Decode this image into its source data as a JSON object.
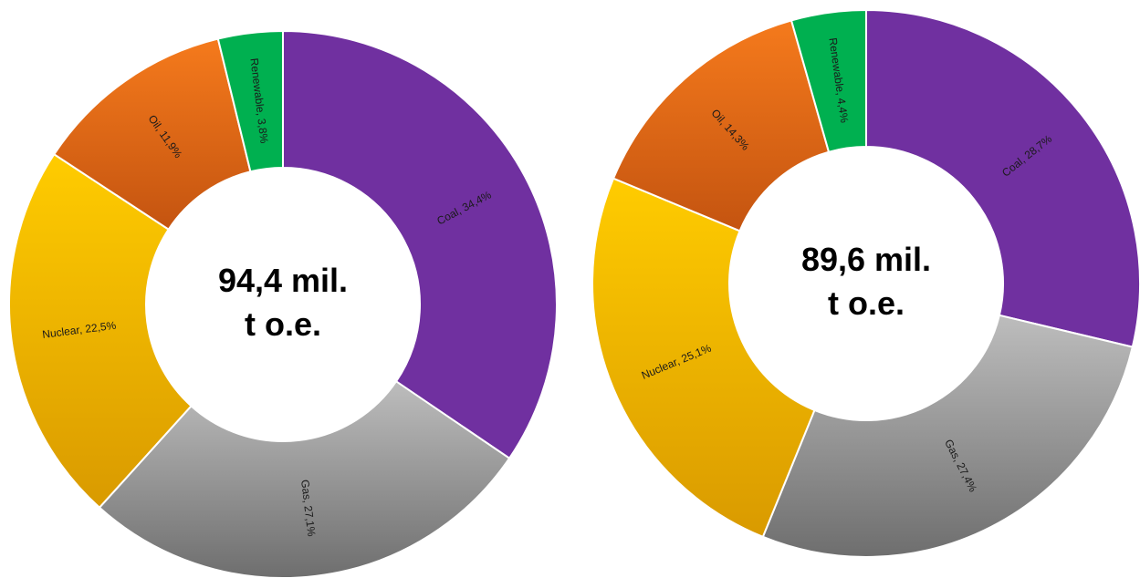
{
  "chart_data": [
    {
      "type": "pie",
      "center_label": [
        "94,4 mil.",
        "t o.e."
      ],
      "slices": [
        {
          "name": "Coal",
          "value": 34.4,
          "label": "Coal, 34,4%",
          "color": "#7030A0"
        },
        {
          "name": "Gas",
          "value": 27.1,
          "label": "Gas, 27,1%",
          "color": "#A6A6A6"
        },
        {
          "name": "Nuclear",
          "value": 22.5,
          "label": "Nuclear, 22,5%",
          "color": "#F5B800"
        },
        {
          "name": "Oil",
          "value": 11.9,
          "label": "Oil, 11,9%",
          "color": "#E8701A"
        },
        {
          "name": "Renewable",
          "value": 3.8,
          "label": "Renewable, 3,8%",
          "color": "#00B050"
        }
      ]
    },
    {
      "type": "pie",
      "center_label": [
        "89,6 mil.",
        "t o.e."
      ],
      "slices": [
        {
          "name": "Coal",
          "value": 28.7,
          "label": "Coal, 28,7%",
          "color": "#7030A0"
        },
        {
          "name": "Gas",
          "value": 27.4,
          "label": "Gas, 27,4%",
          "color": "#A6A6A6"
        },
        {
          "name": "Nuclear",
          "value": 25.1,
          "label": "Nuclear, 25,1%",
          "color": "#F5B800"
        },
        {
          "name": "Oil",
          "value": 14.3,
          "label": "Oil, 14,3%",
          "color": "#E8701A"
        },
        {
          "name": "Renewable",
          "value": 4.4,
          "label": "Renewable, 4,4%",
          "color": "#00B050"
        }
      ]
    }
  ]
}
